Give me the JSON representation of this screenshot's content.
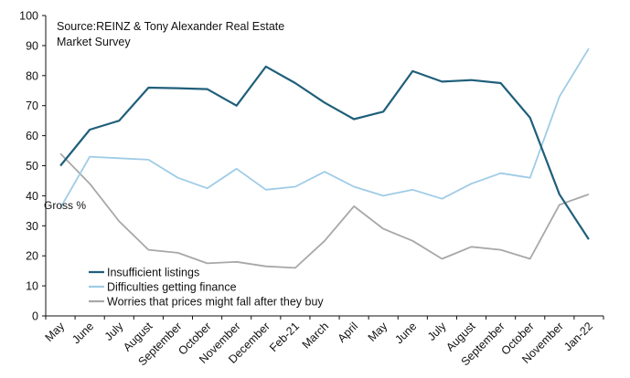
{
  "chart_data": {
    "type": "line",
    "title": "",
    "source": "Source:REINZ & Tony Alexander Real Estate Market Survey",
    "ylabel": "Gross %",
    "xlabel": "",
    "ylim": [
      0,
      100
    ],
    "yticks": [
      0,
      10,
      20,
      30,
      40,
      50,
      60,
      70,
      80,
      90,
      100
    ],
    "grid": false,
    "legend_position": "bottom-left",
    "categories": [
      "May",
      "June",
      "July",
      "August",
      "September",
      "October",
      "November",
      "December",
      "Feb-21",
      "March",
      "April",
      "May",
      "June",
      "July",
      "August",
      "September",
      "October",
      "November",
      "Jan-22"
    ],
    "series": [
      {
        "name": "Insufficient listings",
        "color": "#1f5f7a",
        "values": [
          50,
          62,
          65,
          76,
          75.8,
          75.5,
          70,
          83,
          77.5,
          71,
          65.5,
          68,
          81.5,
          78,
          78.5,
          77.5,
          66,
          40.5,
          25.5
        ]
      },
      {
        "name": "Difficulties getting finance",
        "color": "#9fcce6",
        "values": [
          36,
          53,
          52.5,
          52,
          46,
          42.5,
          49,
          42,
          43,
          48,
          43,
          40,
          42,
          39,
          44,
          47.5,
          46,
          73,
          89
        ]
      },
      {
        "name": "Worries that prices might fall after they buy",
        "color": "#a8a8a8",
        "values": [
          54,
          44,
          31.5,
          22,
          21,
          17.5,
          18,
          16.5,
          16,
          25,
          36.5,
          29,
          25,
          19,
          23,
          22,
          19,
          37,
          40.5
        ]
      }
    ]
  }
}
